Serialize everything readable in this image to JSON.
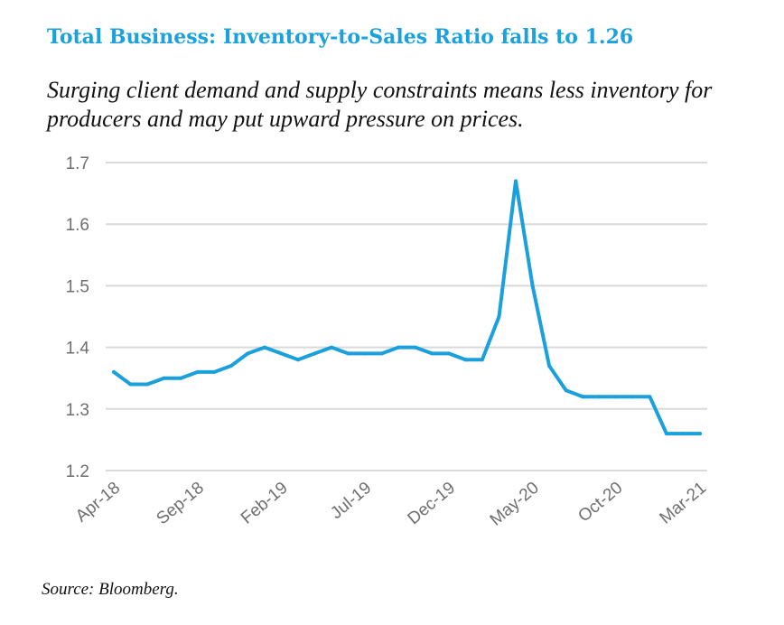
{
  "title": "Total Business: Inventory-to-Sales Ratio falls to 1.26",
  "subtitle": "Surging client demand and supply constraints means less inventory for producers and may put upward pressure on prices.",
  "source": "Source: Bloomberg.",
  "chart_data": {
    "type": "line",
    "title": "",
    "xlabel": "",
    "ylabel": "",
    "ylim": [
      1.2,
      1.7
    ],
    "yticks": [
      "1.7",
      "1.6",
      "1.5",
      "1.4",
      "1.3",
      "1.2"
    ],
    "xticks": [
      "Apr-18",
      "Sep-18",
      "Feb-19",
      "Jul-19",
      "Dec-19",
      "May-20",
      "Oct-20",
      "Mar-21"
    ],
    "grid": true,
    "legend": "none",
    "line_color": "#1aa0dc",
    "x": [
      "Apr-18",
      "May-18",
      "Jun-18",
      "Jul-18",
      "Aug-18",
      "Sep-18",
      "Oct-18",
      "Nov-18",
      "Dec-18",
      "Jan-19",
      "Feb-19",
      "Mar-19",
      "Apr-19",
      "May-19",
      "Jun-19",
      "Jul-19",
      "Aug-19",
      "Sep-19",
      "Oct-19",
      "Nov-19",
      "Dec-19",
      "Jan-20",
      "Feb-20",
      "Mar-20",
      "Apr-20",
      "May-20",
      "Jun-20",
      "Jul-20",
      "Aug-20",
      "Sep-20",
      "Oct-20",
      "Nov-20",
      "Dec-20",
      "Jan-21",
      "Feb-21",
      "Mar-21"
    ],
    "series": [
      {
        "values": [
          1.36,
          1.34,
          1.34,
          1.35,
          1.35,
          1.36,
          1.36,
          1.37,
          1.39,
          1.4,
          1.39,
          1.38,
          1.39,
          1.4,
          1.39,
          1.39,
          1.39,
          1.4,
          1.4,
          1.39,
          1.39,
          1.38,
          1.38,
          1.45,
          1.67,
          1.5,
          1.37,
          1.33,
          1.32,
          1.32,
          1.32,
          1.32,
          1.32,
          1.26,
          1.26,
          1.26
        ]
      }
    ]
  }
}
